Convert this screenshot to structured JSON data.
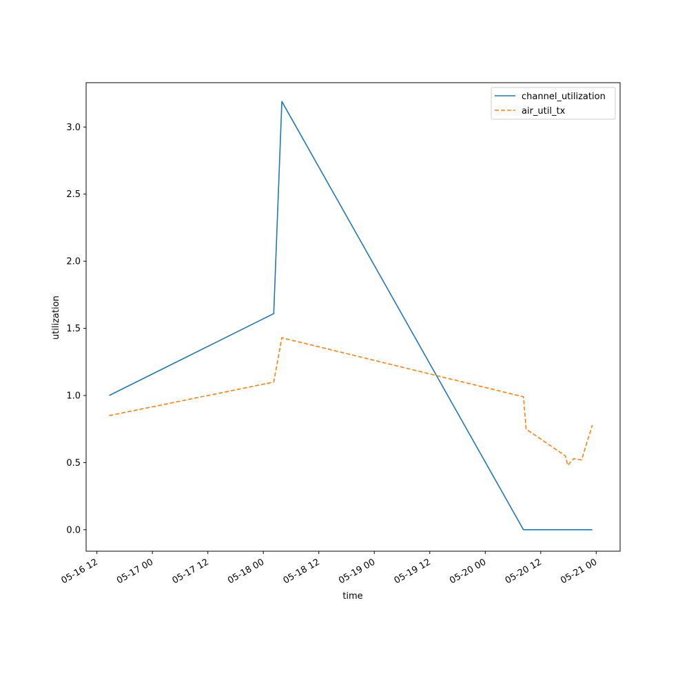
{
  "chart_data": {
    "type": "line",
    "xlabel": "time",
    "ylabel": "utilization",
    "x_tick_labels": [
      "05-16 12",
      "05-17 00",
      "05-17 12",
      "05-18 00",
      "05-18 12",
      "05-19 00",
      "05-19 12",
      "05-20 00",
      "05-20 12",
      "05-21 00"
    ],
    "x_ticks": [
      "2024-05-16T12:00",
      "2024-05-17T00:00",
      "2024-05-17T12:00",
      "2024-05-18T00:00",
      "2024-05-18T12:00",
      "2024-05-19T00:00",
      "2024-05-19T12:00",
      "2024-05-20T00:00",
      "2024-05-20T12:00",
      "2024-05-21T00:00"
    ],
    "xlim": [
      "2024-05-16T09:40",
      "2024-05-21T05:10"
    ],
    "y_ticks": [
      0.0,
      0.5,
      1.0,
      1.5,
      2.0,
      2.5,
      3.0
    ],
    "y_tick_labels": [
      "0.0",
      "0.5",
      "1.0",
      "1.5",
      "2.0",
      "2.5",
      "3.0"
    ],
    "ylim": [
      -0.16,
      3.33
    ],
    "grid": false,
    "legend_position": "top-right",
    "series": [
      {
        "name": "channel_utilization",
        "color": "#1f77b4",
        "style": "solid",
        "points": [
          [
            "2024-05-16T14:40",
            1.0
          ],
          [
            "2024-05-18T02:15",
            1.61
          ],
          [
            "2024-05-18T04:00",
            3.19
          ],
          [
            "2024-05-20T08:15",
            0.0
          ],
          [
            "2024-05-20T23:10",
            0.0
          ]
        ]
      },
      {
        "name": "air_util_tx",
        "color": "#ff7f0e",
        "style": "dashed",
        "points": [
          [
            "2024-05-16T14:40",
            0.85
          ],
          [
            "2024-05-18T02:15",
            1.1
          ],
          [
            "2024-05-18T04:00",
            1.43
          ],
          [
            "2024-05-20T08:15",
            0.99
          ],
          [
            "2024-05-20T08:50",
            0.75
          ],
          [
            "2024-05-20T17:20",
            0.55
          ],
          [
            "2024-05-20T17:50",
            0.48
          ],
          [
            "2024-05-20T19:10",
            0.53
          ],
          [
            "2024-05-20T20:50",
            0.52
          ],
          [
            "2024-05-20T23:10",
            0.78
          ]
        ]
      }
    ]
  }
}
